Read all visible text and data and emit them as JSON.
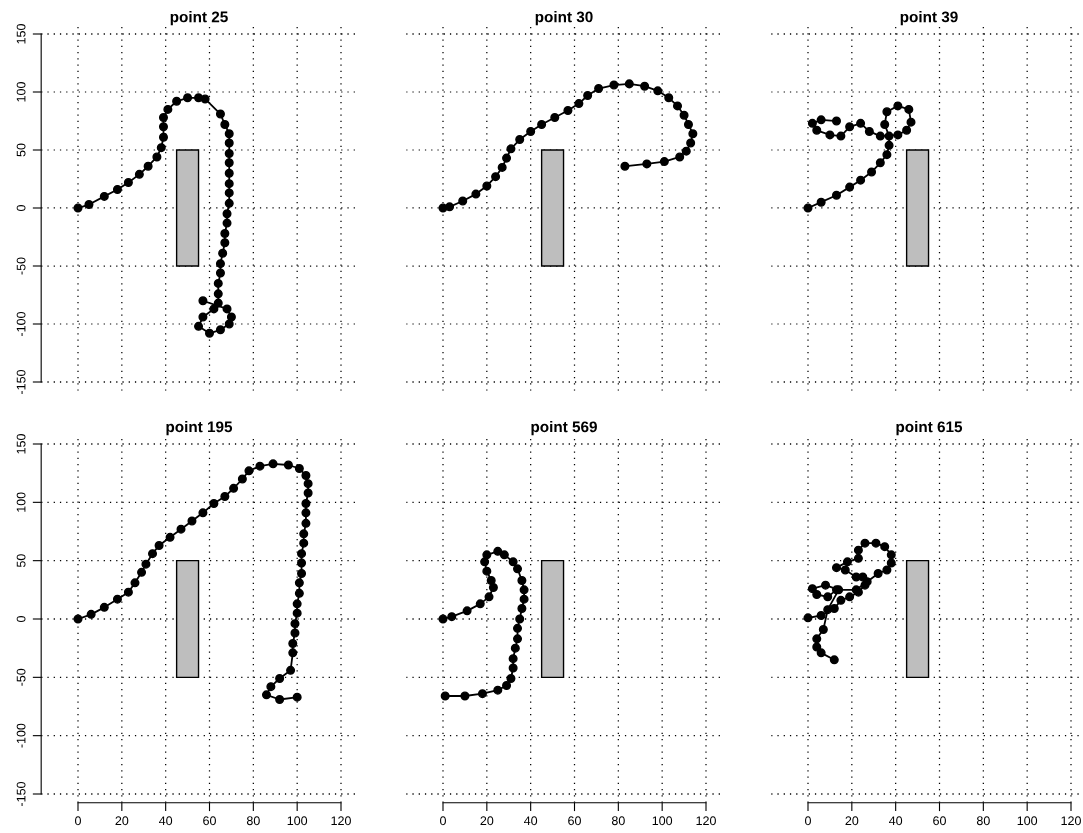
{
  "chart_data": [
    {
      "type": "line",
      "title": "point 25",
      "xlim": [
        0,
        120
      ],
      "ylim": [
        -150,
        150
      ],
      "xticks": [
        0,
        20,
        40,
        60,
        80,
        100,
        120
      ],
      "yticks": [
        -150,
        -100,
        -50,
        0,
        50,
        100,
        150
      ],
      "grid": true,
      "tick_labels": "y",
      "line_style": "solid",
      "series": [
        {
          "type": "area",
          "marker": "none",
          "x": [
            45,
            45,
            55,
            55,
            45
          ],
          "values": [
            -50,
            50,
            50,
            -50,
            -50
          ],
          "color": "#bebebe"
        },
        {
          "marker": "circle",
          "color": "#000000",
          "x": [
            0,
            5,
            12,
            18,
            23,
            28,
            32,
            36,
            38,
            39,
            39,
            39,
            41,
            45,
            50,
            55,
            58,
            65,
            67,
            69,
            69,
            69,
            69,
            69,
            69,
            69,
            69,
            68,
            68,
            67,
            67,
            66,
            65,
            65,
            64,
            64,
            64,
            62,
            57,
            55,
            60,
            65,
            69,
            70,
            68,
            57
          ],
          "values": [
            0,
            3,
            10,
            16,
            22,
            29,
            36,
            44,
            52,
            61,
            70,
            78,
            85,
            92,
            95,
            95,
            94,
            81,
            72,
            64,
            56,
            47,
            39,
            30,
            21,
            13,
            4,
            -5,
            -13,
            -22,
            -30,
            -39,
            -48,
            -56,
            -65,
            -74,
            -82,
            -87,
            -94,
            -102,
            -108,
            -105,
            -100,
            -94,
            -87,
            -80
          ]
        }
      ]
    },
    {
      "type": "line",
      "title": "point 30",
      "xlim": [
        0,
        120
      ],
      "ylim": [
        -150,
        150
      ],
      "xticks": [
        0,
        20,
        40,
        60,
        80,
        100,
        120
      ],
      "yticks": [
        -150,
        -100,
        -50,
        0,
        50,
        100,
        150
      ],
      "grid": true,
      "tick_labels": false,
      "line_style": "solid",
      "series": [
        {
          "type": "area",
          "marker": "none",
          "x": [
            45,
            45,
            55,
            55,
            45
          ],
          "values": [
            -50,
            50,
            50,
            -50,
            -50
          ],
          "color": "#bebebe"
        },
        {
          "marker": "circle",
          "color": "#000000",
          "x": [
            0,
            3,
            9,
            15,
            20,
            24,
            27,
            29,
            31,
            35,
            40,
            45,
            51,
            57,
            62,
            66,
            71,
            78,
            85,
            92,
            98,
            103,
            107,
            110,
            112,
            114,
            113,
            111,
            108,
            101,
            93,
            83
          ],
          "values": [
            0,
            1,
            6,
            12,
            19,
            27,
            35,
            43,
            51,
            59,
            66,
            72,
            78,
            84,
            90,
            97,
            103,
            106,
            107,
            105,
            101,
            95,
            88,
            80,
            72,
            64,
            56,
            49,
            44,
            40,
            38,
            36
          ]
        }
      ]
    },
    {
      "type": "line",
      "title": "point 39",
      "xlim": [
        0,
        120
      ],
      "ylim": [
        -150,
        150
      ],
      "xticks": [
        0,
        20,
        40,
        60,
        80,
        100,
        120
      ],
      "yticks": [
        -150,
        -100,
        -50,
        0,
        50,
        100,
        150
      ],
      "grid": true,
      "tick_labels": false,
      "line_style": "solid",
      "series": [
        {
          "type": "area",
          "marker": "none",
          "x": [
            45,
            45,
            55,
            55,
            45
          ],
          "values": [
            -50,
            50,
            50,
            -50,
            -50
          ],
          "color": "#bebebe"
        },
        {
          "marker": "circle",
          "color": "#000000",
          "x": [
            0,
            6,
            13,
            19,
            24,
            29,
            33,
            36,
            37,
            37,
            35,
            36,
            41,
            46,
            47,
            45,
            41,
            33,
            28,
            24,
            19,
            15,
            10,
            4,
            2,
            6,
            13
          ],
          "values": [
            0,
            5,
            11,
            18,
            24,
            31,
            39,
            46,
            54,
            62,
            72,
            83,
            88,
            85,
            74,
            67,
            63,
            62,
            66,
            73,
            70,
            62,
            63,
            67,
            73,
            76,
            75
          ]
        }
      ]
    },
    {
      "type": "line",
      "title": "point 195",
      "xlim": [
        0,
        120
      ],
      "ylim": [
        -150,
        150
      ],
      "xticks": [
        0,
        20,
        40,
        60,
        80,
        100,
        120
      ],
      "yticks": [
        -150,
        -100,
        -50,
        0,
        50,
        100,
        150
      ],
      "grid": true,
      "line_style": "solid",
      "series": [
        {
          "type": "area",
          "marker": "none",
          "x": [
            45,
            45,
            55,
            55,
            45
          ],
          "values": [
            -50,
            50,
            50,
            -50,
            -50
          ],
          "color": "#bebebe"
        },
        {
          "marker": "circle",
          "color": "#000000",
          "x": [
            0,
            6,
            12,
            18,
            23,
            26,
            29,
            31,
            34,
            37,
            42,
            47,
            52,
            57,
            62,
            67,
            71,
            75,
            78,
            83,
            89,
            96,
            101,
            104,
            105,
            105,
            104,
            104,
            104,
            103,
            103,
            102,
            102,
            102,
            101,
            101,
            100,
            100,
            99,
            99,
            98,
            98,
            97,
            92,
            88,
            86,
            92,
            100
          ],
          "values": [
            0,
            4,
            10,
            17,
            23,
            31,
            40,
            47,
            56,
            63,
            70,
            77,
            84,
            91,
            99,
            105,
            112,
            120,
            127,
            131,
            133,
            132,
            129,
            123,
            116,
            108,
            99,
            91,
            82,
            73,
            65,
            56,
            48,
            39,
            31,
            22,
            13,
            5,
            -4,
            -12,
            -21,
            -29,
            -44,
            -51,
            -58,
            -65,
            -69,
            -67
          ]
        }
      ]
    },
    {
      "type": "line",
      "title": "point 569",
      "xlim": [
        0,
        120
      ],
      "ylim": [
        -150,
        150
      ],
      "xticks": [
        0,
        20,
        40,
        60,
        80,
        100,
        120
      ],
      "yticks": [
        -150,
        -100,
        -50,
        0,
        50,
        100,
        150
      ],
      "grid": true,
      "tick_labels": "x",
      "line_style": "solid",
      "series": [
        {
          "type": "area",
          "marker": "none",
          "x": [
            45,
            45,
            55,
            55,
            45
          ],
          "values": [
            -50,
            50,
            50,
            -50,
            -50
          ],
          "color": "#bebebe"
        },
        {
          "marker": "circle",
          "color": "#000000",
          "x": [
            0,
            4,
            11,
            17,
            21,
            23,
            22,
            20,
            19,
            20,
            25,
            28,
            32,
            34,
            36,
            37,
            37,
            36,
            35,
            34,
            34,
            33,
            32,
            32,
            31,
            29,
            25,
            18,
            10,
            1
          ],
          "values": [
            0,
            2,
            7,
            13,
            19,
            27,
            33,
            41,
            49,
            55,
            58,
            55,
            49,
            43,
            33,
            25,
            17,
            9,
            0,
            -8,
            -17,
            -25,
            -34,
            -42,
            -51,
            -57,
            -61,
            -64,
            -66,
            -66
          ]
        }
      ]
    },
    {
      "type": "line",
      "title": "point 615",
      "xlim": [
        0,
        120
      ],
      "ylim": [
        -150,
        150
      ],
      "xticks": [
        0,
        20,
        40,
        60,
        80,
        100,
        120
      ],
      "yticks": [
        -150,
        -100,
        -50,
        0,
        50,
        100,
        150
      ],
      "grid": true,
      "tick_labels": "x",
      "line_style": "solid",
      "series": [
        {
          "type": "area",
          "marker": "none",
          "x": [
            45,
            45,
            55,
            55,
            45
          ],
          "values": [
            -50,
            50,
            50,
            -50,
            -50
          ],
          "color": "#bebebe"
        },
        {
          "marker": "circle",
          "color": "#000000",
          "x": [
            0,
            6,
            12,
            15,
            19,
            23,
            26,
            25,
            22,
            17,
            13,
            18,
            23,
            23,
            26,
            31,
            35,
            38,
            38,
            36,
            32,
            27,
            22,
            13,
            9,
            4,
            2,
            8,
            14,
            9,
            7,
            4,
            4,
            6,
            12
          ],
          "values": [
            1,
            3,
            9,
            16,
            19,
            23,
            29,
            36,
            36,
            42,
            44,
            49,
            52,
            59,
            65,
            65,
            62,
            55,
            48,
            42,
            39,
            32,
            25,
            25,
            19,
            21,
            26,
            29,
            25,
            8,
            -9,
            -17,
            -24,
            -29,
            -35
          ]
        }
      ]
    }
  ]
}
